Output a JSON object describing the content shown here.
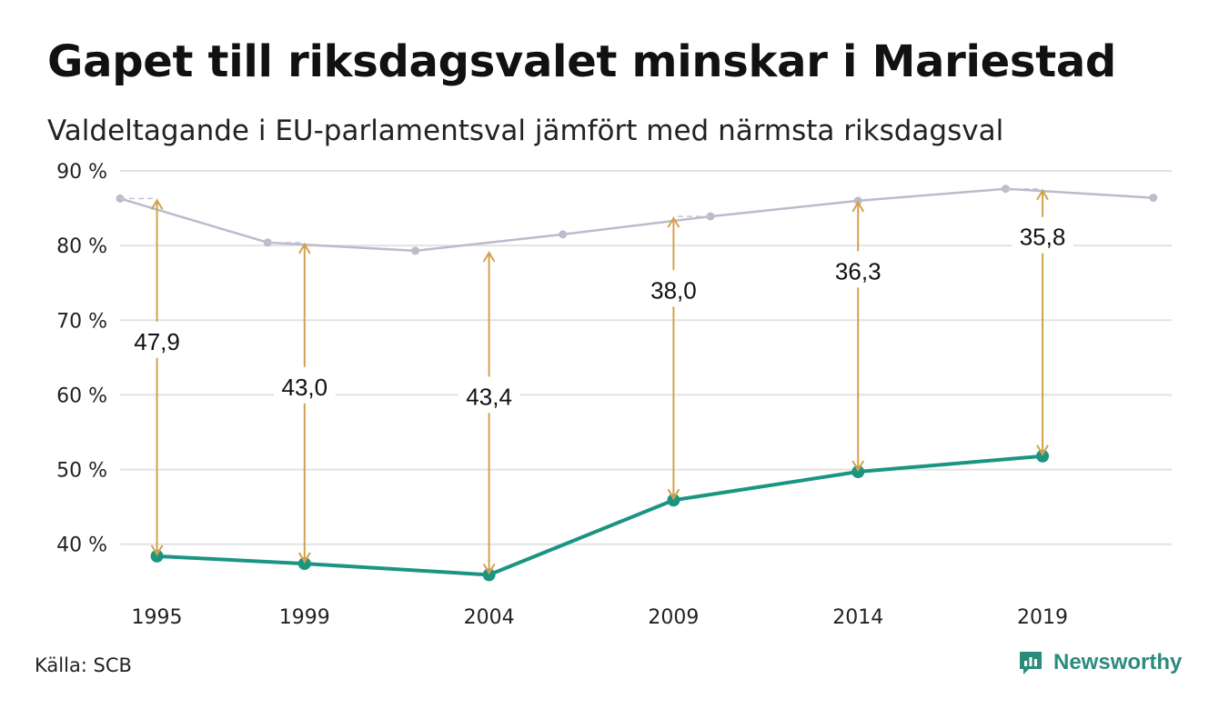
{
  "title": "Gapet till riksdagsvalet minskar i Mariestad",
  "subtitle": "Valdeltagande i EU-parlamentsval jämfört med närmsta riksdagsval",
  "source": "Källa: SCB",
  "brand": "Newsworthy",
  "colors": {
    "eu": "#1b9582",
    "riksdag": "#bdbacb",
    "gap_arrow": "#d1a24c",
    "grid": "#e2e2e2"
  },
  "chart_data": {
    "type": "line",
    "x_ticks": [
      1995,
      1999,
      2004,
      2009,
      2014,
      2019
    ],
    "xlim": [
      1994,
      2022.5
    ],
    "ylim": [
      34,
      90
    ],
    "y_ticks": [
      {
        "value": 40,
        "label": "40 %"
      },
      {
        "value": 50,
        "label": "50 %"
      },
      {
        "value": 60,
        "label": "60 %"
      },
      {
        "value": 70,
        "label": "70 %"
      },
      {
        "value": 80,
        "label": "80 %"
      },
      {
        "value": 90,
        "label": "90 %"
      }
    ],
    "grid": true,
    "series": [
      {
        "key": "riksdag",
        "points": [
          {
            "x": 1994,
            "y": 86.3
          },
          {
            "x": 1998,
            "y": 80.4
          },
          {
            "x": 2002,
            "y": 79.3
          },
          {
            "x": 2006,
            "y": 81.5
          },
          {
            "x": 2010,
            "y": 83.9
          },
          {
            "x": 2014,
            "y": 86.0
          },
          {
            "x": 2018,
            "y": 87.6
          },
          {
            "x": 2022,
            "y": 86.4
          }
        ]
      },
      {
        "key": "eu",
        "points": [
          {
            "x": 1995,
            "y": 38.4
          },
          {
            "x": 1999,
            "y": 37.4
          },
          {
            "x": 2004,
            "y": 35.9
          },
          {
            "x": 2009,
            "y": 45.9
          },
          {
            "x": 2014,
            "y": 49.7
          },
          {
            "x": 2019,
            "y": 51.8
          }
        ]
      }
    ],
    "gaps": [
      {
        "x": 1995,
        "from": 38.4,
        "to": 86.3,
        "label": "47,9"
      },
      {
        "x": 1999,
        "from": 37.4,
        "to": 80.4,
        "label": "43,0"
      },
      {
        "x": 2004,
        "from": 35.9,
        "to": 79.3,
        "label": "43,4"
      },
      {
        "x": 2009,
        "from": 45.9,
        "to": 83.9,
        "label": "38,0"
      },
      {
        "x": 2014,
        "from": 49.7,
        "to": 86.0,
        "label": "36,3"
      },
      {
        "x": 2019,
        "from": 51.8,
        "to": 87.6,
        "label": "35,8"
      }
    ]
  }
}
